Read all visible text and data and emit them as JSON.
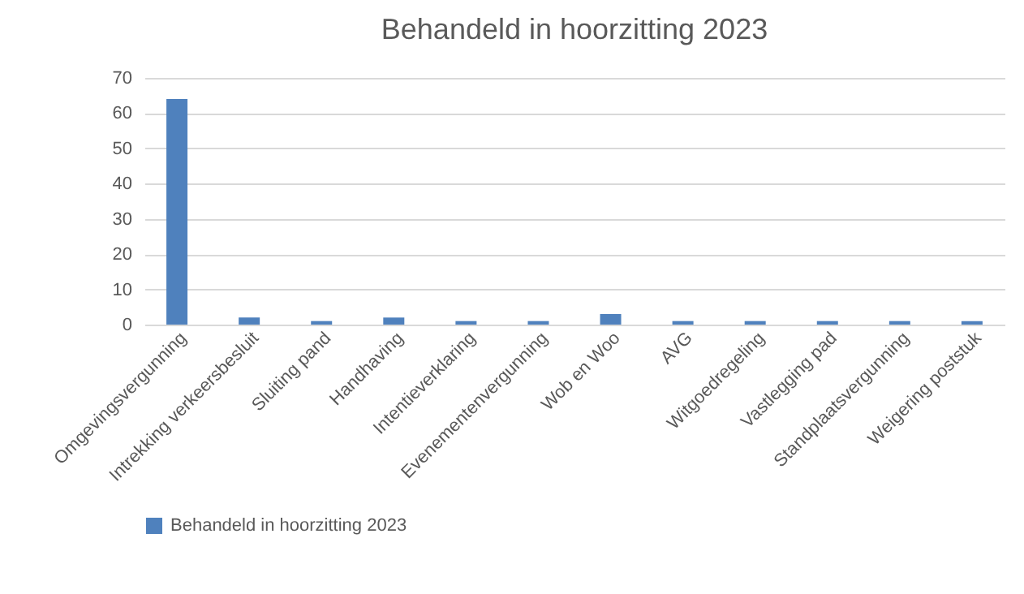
{
  "chart_data": {
    "type": "bar",
    "title": "Behandeld in hoorzitting 2023",
    "categories": [
      "Omgevingsvergunning",
      "Intrekking verkeersbesluit",
      "Sluiting pand",
      "Handhaving",
      "Intentieverklaring",
      "Evenementenvergunning",
      "Wob en Woo",
      "AVG",
      "Witgoedregeling",
      "Vastlegging pad",
      "Standplaatsvergunning",
      "Weigering poststuk"
    ],
    "series": [
      {
        "name": "Behandeld in hoorzitting 2023",
        "color": "#4f81bd",
        "values": [
          64,
          2,
          1,
          2,
          1,
          1,
          3,
          1,
          1,
          1,
          1,
          1
        ]
      }
    ],
    "ylim": [
      0,
      70
    ],
    "yticks": [
      0,
      10,
      20,
      30,
      40,
      50,
      60,
      70
    ],
    "grid": "y",
    "legend": "bottom"
  }
}
